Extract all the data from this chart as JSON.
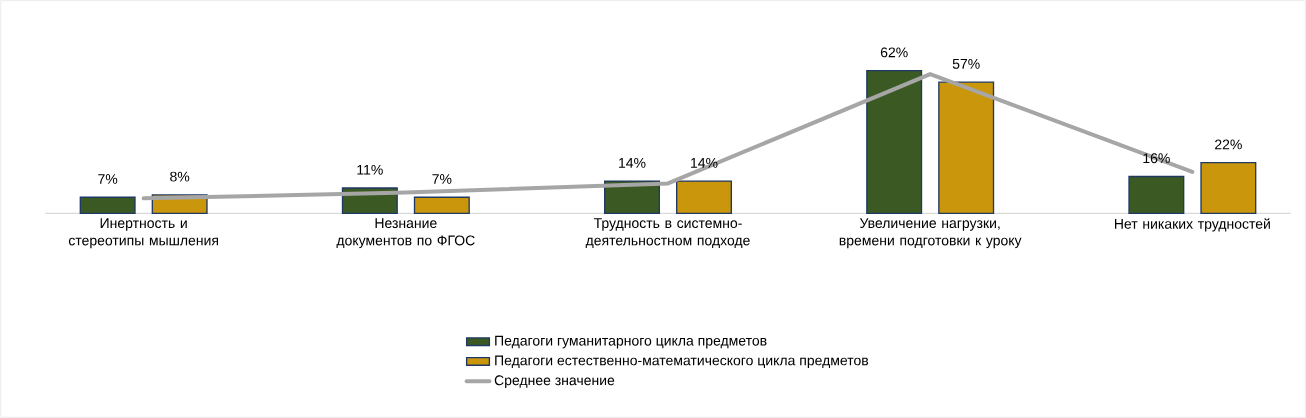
{
  "chart_data": {
    "type": "bar",
    "categories": [
      "Инертность и стереотипы мышления",
      "Незнание документов по ФГОС",
      "Трудность в системно-деятельностном подходе",
      "Увеличение нагрузки, времени подготовки к уроку",
      "Нет никаких трудностей"
    ],
    "series": [
      {
        "name": "Педагоги гуманитарного цикла предметов",
        "color": "#3b5a23",
        "values": [
          7,
          11,
          14,
          62,
          16
        ],
        "value_labels": [
          "7%",
          "11%",
          "14%",
          "62%",
          "16%"
        ]
      },
      {
        "name": "Педагоги естественно-математического цикла предметов",
        "color": "#c9960c",
        "values": [
          8,
          7,
          14,
          57,
          22
        ],
        "value_labels": [
          "8%",
          "7%",
          "14%",
          "57%",
          "22%"
        ]
      },
      {
        "name": "Среднее значение",
        "type": "line",
        "color": "#a6a6a6",
        "values": [
          6.5,
          9,
          13,
          60.5,
          18
        ]
      }
    ],
    "legend": "bottom"
  }
}
